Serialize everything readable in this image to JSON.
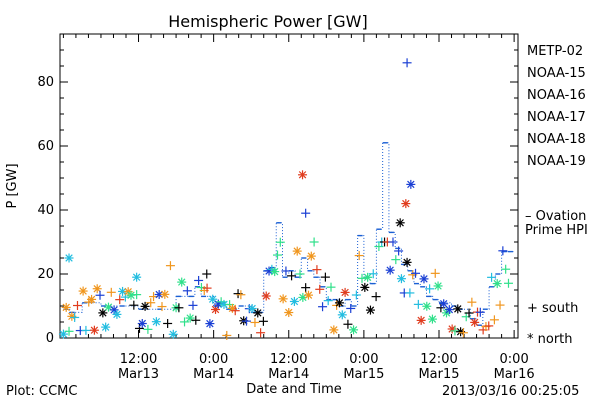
{
  "chart_data": {
    "type": "scatter",
    "title": "Hemispheric Power [GW]",
    "xlabel": "Date and Time",
    "ylabel": "P [GW]",
    "ylim": [
      0,
      95
    ],
    "xlim_hours": [
      0,
      72
    ],
    "y_ticks": [
      0,
      20,
      40,
      60,
      80
    ],
    "x_ticks": [
      {
        "top": "12:00",
        "bottom": "Mar13"
      },
      {
        "top": "0:00",
        "bottom": "Mar14"
      },
      {
        "top": "12:00",
        "bottom": "Mar14"
      },
      {
        "top": "0:00",
        "bottom": "Mar15"
      },
      {
        "top": "12:00",
        "bottom": "Mar15"
      },
      {
        "top": "0:00",
        "bottom": "Mar16"
      }
    ],
    "footer_left": "Plot: CCMC",
    "footer_right": "2013/03/16 00:25:05",
    "legend": {
      "series": [
        {
          "name": "METP-02",
          "color": "#000000"
        },
        {
          "name": "NOAA-15",
          "color": "#1a3fd4"
        },
        {
          "name": "NOAA-16",
          "color": "#22bde0"
        },
        {
          "name": "NOAA-17",
          "color": "#2fe08a"
        },
        {
          "name": "NOAA-18",
          "color": "#f0961e"
        },
        {
          "name": "NOAA-19",
          "color": "#e03c1e"
        }
      ],
      "ovation_line1": "– Ovation",
      "ovation_line2": "Prime HPI",
      "ovation_color": "#1a5fd4",
      "south_label": "+ south",
      "north_label": "* north"
    },
    "ovation_step": [
      [
        0,
        9
      ],
      [
        1,
        8
      ],
      [
        3,
        11
      ],
      [
        6,
        10
      ],
      [
        9,
        10
      ],
      [
        12,
        9
      ],
      [
        15,
        9
      ],
      [
        18,
        13
      ],
      [
        20,
        13
      ],
      [
        21,
        16
      ],
      [
        22,
        13
      ],
      [
        24,
        10
      ],
      [
        25,
        11
      ],
      [
        26,
        9
      ],
      [
        28,
        10
      ],
      [
        30,
        8
      ],
      [
        31,
        8
      ],
      [
        32,
        21
      ],
      [
        33,
        22
      ],
      [
        34,
        36
      ],
      [
        35,
        19
      ],
      [
        36,
        21
      ],
      [
        37,
        19
      ],
      [
        38,
        25
      ],
      [
        39,
        21
      ],
      [
        40,
        19
      ],
      [
        41,
        16
      ],
      [
        42,
        12
      ],
      [
        43,
        12
      ],
      [
        44,
        10
      ],
      [
        45,
        12
      ],
      [
        46,
        10
      ],
      [
        47,
        32
      ],
      [
        48,
        19
      ],
      [
        49,
        17
      ],
      [
        50,
        34
      ],
      [
        51,
        61
      ],
      [
        52,
        33
      ],
      [
        53,
        28
      ],
      [
        54,
        23
      ],
      [
        55,
        21
      ],
      [
        56,
        17
      ],
      [
        57,
        16
      ],
      [
        58,
        13
      ],
      [
        59,
        12
      ],
      [
        60,
        11
      ],
      [
        62,
        10
      ],
      [
        63,
        9
      ],
      [
        65,
        6
      ],
      [
        66,
        4
      ],
      [
        67,
        9
      ],
      [
        68,
        16
      ],
      [
        69,
        20
      ],
      [
        70,
        27
      ],
      [
        71,
        27
      ]
    ],
    "highlights": [
      {
        "series": "NOAA-19",
        "x": 38.2,
        "y": 51,
        "marker": "north"
      },
      {
        "series": "NOAA-15",
        "x": 38.7,
        "y": 39,
        "marker": "south"
      },
      {
        "series": "NOAA-15",
        "x": 54.9,
        "y": 86,
        "marker": "south"
      },
      {
        "series": "NOAA-15",
        "x": 55.5,
        "y": 48,
        "marker": "north"
      },
      {
        "series": "NOAA-19",
        "x": 54.7,
        "y": 42,
        "marker": "north"
      },
      {
        "series": "METP-02",
        "x": 53.8,
        "y": 36,
        "marker": "north"
      },
      {
        "series": "METP-02",
        "x": 22.9,
        "y": 20,
        "marker": "south"
      },
      {
        "series": "NOAA-16",
        "x": 0.9,
        "y": 25,
        "marker": "north"
      },
      {
        "series": "NOAA-16",
        "x": 11.7,
        "y": 19,
        "marker": "north"
      }
    ]
  }
}
